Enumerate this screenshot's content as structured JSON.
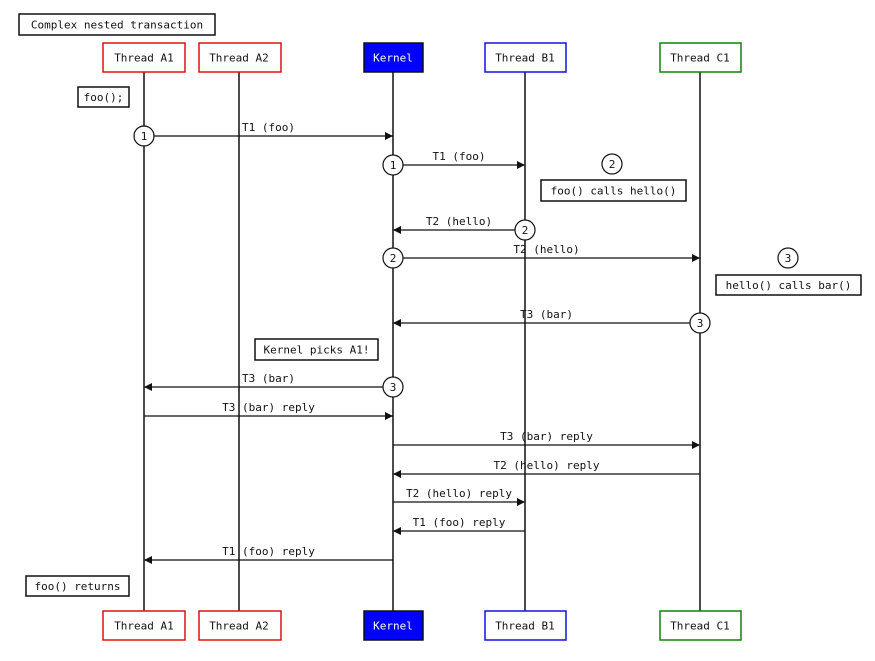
{
  "title": "Complex nested transaction",
  "participants": [
    {
      "id": "A1",
      "label": "Thread A1",
      "border": "#e01010",
      "fill": "#ffffff",
      "text": "#111111"
    },
    {
      "id": "A2",
      "label": "Thread A2",
      "border": "#e01010",
      "fill": "#ffffff",
      "text": "#111111"
    },
    {
      "id": "K",
      "label": "Kernel",
      "border": "#111111",
      "fill": "#0000ff",
      "text": "#ffffff"
    },
    {
      "id": "B1",
      "label": "Thread B1",
      "border": "#1010e0",
      "fill": "#ffffff",
      "text": "#111111"
    },
    {
      "id": "C1",
      "label": "Thread C1",
      "border": "#108010",
      "fill": "#ffffff",
      "text": "#111111"
    }
  ],
  "messages": [
    {
      "from": "A1",
      "to": "K",
      "label": "T1 (foo)",
      "marker": "1"
    },
    {
      "from": "K",
      "to": "B1",
      "label": "T1 (foo)",
      "marker": "1"
    },
    {
      "from": "B1",
      "to": "K",
      "label": "T2 (hello)",
      "marker": "2"
    },
    {
      "from": "K",
      "to": "C1",
      "label": "T2 (hello)",
      "marker": "2"
    },
    {
      "from": "C1",
      "to": "K",
      "label": "T3 (bar)",
      "marker": "3"
    },
    {
      "from": "K",
      "to": "A1",
      "label": "T3 (bar)",
      "marker": "3"
    },
    {
      "from": "A1",
      "to": "K",
      "label": "T3 (bar) reply",
      "marker": ""
    },
    {
      "from": "K",
      "to": "C1",
      "label": "T3 (bar) reply",
      "marker": ""
    },
    {
      "from": "C1",
      "to": "K",
      "label": "T2 (hello) reply",
      "marker": ""
    },
    {
      "from": "K",
      "to": "B1",
      "label": "T2 (hello) reply",
      "marker": ""
    },
    {
      "from": "B1",
      "to": "K",
      "label": "T1 (foo) reply",
      "marker": ""
    },
    {
      "from": "K",
      "to": "A1",
      "label": "T1 (foo) reply",
      "marker": ""
    }
  ],
  "notes": [
    {
      "text": "foo();"
    },
    {
      "text": "foo() calls hello()",
      "marker": "2"
    },
    {
      "text": "hello() calls bar()",
      "marker": "3"
    },
    {
      "text": "Kernel picks A1!"
    },
    {
      "text": "foo() returns"
    }
  ]
}
